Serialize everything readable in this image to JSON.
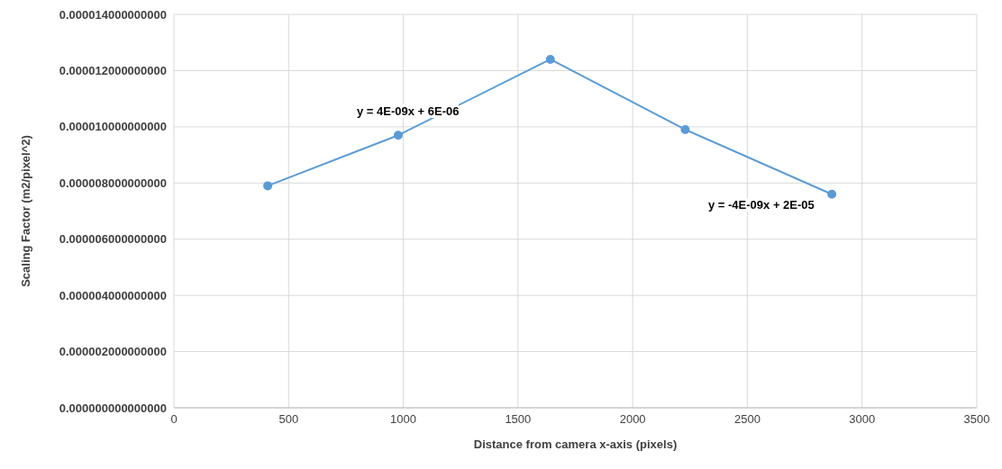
{
  "chart_data": {
    "type": "line",
    "xlabel": "Distance from camera x-axis (pixels)",
    "ylabel": "Scaling Factor (m2/pixel^2)",
    "x": [
      409,
      978,
      1641,
      2229,
      2868
    ],
    "series": [
      {
        "color": "#5b9bd5",
        "values": [
          7.9e-06,
          9.7e-06,
          1.24e-05,
          9.9e-06,
          7.6e-06
        ]
      }
    ],
    "xlim": [
      0,
      3500
    ],
    "xticks": [
      0,
      500,
      1000,
      1500,
      2000,
      2500,
      3000,
      3500
    ],
    "ylim": [
      0,
      1.4e-05
    ],
    "yticks": [
      {
        "value": 0,
        "label": "0.000000000000000"
      },
      {
        "value": 2e-06,
        "label": "0.000002000000000"
      },
      {
        "value": 4e-06,
        "label": "0.000004000000000"
      },
      {
        "value": 6e-06,
        "label": "0.000006000000000"
      },
      {
        "value": 8e-06,
        "label": "0.000008000000000"
      },
      {
        "value": 1e-05,
        "label": "0.000010000000000"
      },
      {
        "value": 1.2e-05,
        "label": "0.000012000000000"
      },
      {
        "value": 1.4e-05,
        "label": "0.000014000000000"
      }
    ],
    "grid": true,
    "marker": "circle",
    "line_style": "solid",
    "annotations": [
      "y = 4E-09x + 6E-06",
      "y = -4E-09x + 2E-05"
    ]
  }
}
